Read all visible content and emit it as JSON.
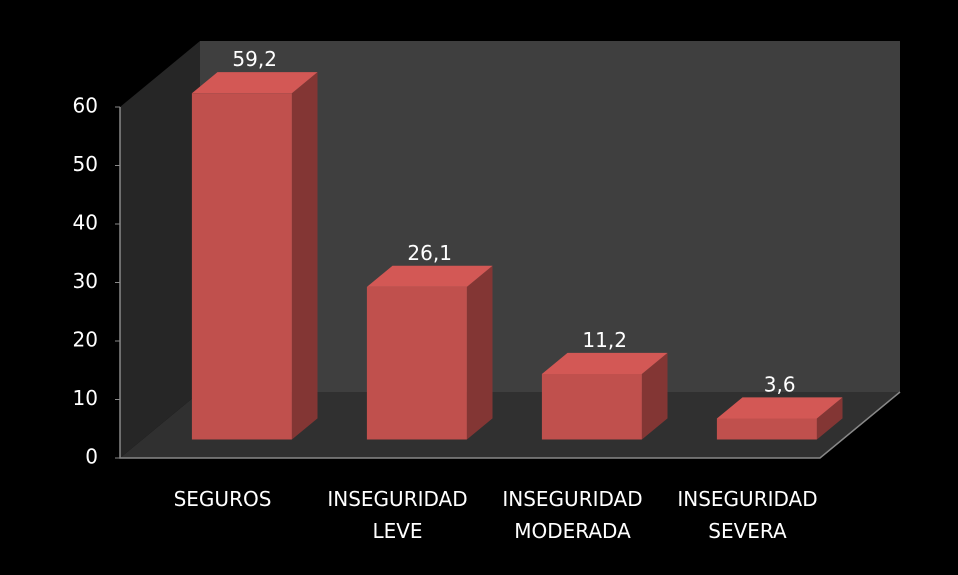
{
  "chart_data": {
    "type": "bar3d",
    "categories": [
      "SEGUROS",
      "INSEGURIDAD LEVE",
      "INSEGURIDAD MODERADA",
      "INSEGURIDAD SEVERA"
    ],
    "values": [
      59.2,
      26.1,
      11.2,
      3.6
    ],
    "value_labels": [
      "59,2",
      "26,1",
      "11,2",
      "3,6"
    ],
    "color": "#c0504d",
    "ylim": [
      0,
      60
    ],
    "yticks": [
      0,
      10,
      20,
      30,
      40,
      50,
      60
    ]
  }
}
